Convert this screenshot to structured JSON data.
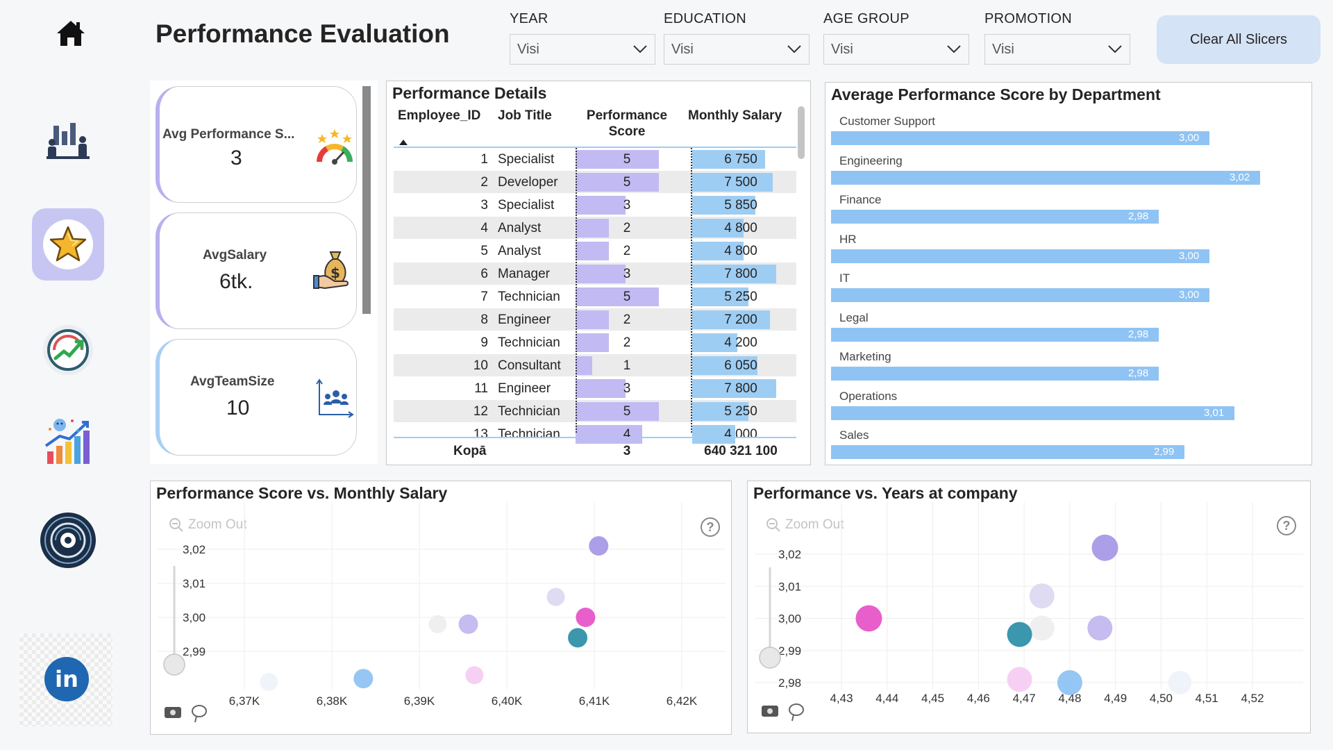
{
  "header": {
    "title": "Performance Evaluation",
    "clear_label": "Clear All Slicers"
  },
  "slicers": [
    {
      "label": "YEAR",
      "value": "Visi"
    },
    {
      "label": "EDUCATION",
      "value": "Visi"
    },
    {
      "label": "AGE GROUP",
      "value": "Visi"
    },
    {
      "label": "PROMOTION",
      "value": "Visi"
    }
  ],
  "sidebar": {
    "linkedin_text": "in",
    "icons": [
      "home-icon",
      "team-meeting-icon",
      "star-icon",
      "speedometer-icon",
      "growth-chart-icon",
      "gear-globe-icon",
      "linkedin-icon"
    ],
    "active_color": "#c7c6f2"
  },
  "kpis": [
    {
      "label": "Avg Performance S...",
      "value": "3",
      "icon": "rating-gauge-icon"
    },
    {
      "label": "AvgSalary",
      "value": "6tk.",
      "icon": "money-bag-icon"
    },
    {
      "label": "AvgTeamSize",
      "value": "10",
      "icon": "team-growth-icon"
    }
  ],
  "details": {
    "title": "Performance Details",
    "columns": {
      "id": "Employee_ID",
      "job": "Job Title",
      "score": "Performance Score",
      "salary": "Monthly Salary"
    },
    "rows": [
      {
        "id": "1",
        "job": "Specialist",
        "score": "5",
        "salary": "6 750",
        "score_n": 5,
        "salary_n": 6750
      },
      {
        "id": "2",
        "job": "Developer",
        "score": "5",
        "salary": "7 500",
        "score_n": 5,
        "salary_n": 7500
      },
      {
        "id": "3",
        "job": "Specialist",
        "score": "3",
        "salary": "5 850",
        "score_n": 3,
        "salary_n": 5850
      },
      {
        "id": "4",
        "job": "Analyst",
        "score": "2",
        "salary": "4 800",
        "score_n": 2,
        "salary_n": 4800
      },
      {
        "id": "5",
        "job": "Analyst",
        "score": "2",
        "salary": "4 800",
        "score_n": 2,
        "salary_n": 4800
      },
      {
        "id": "6",
        "job": "Manager",
        "score": "3",
        "salary": "7 800",
        "score_n": 3,
        "salary_n": 7800
      },
      {
        "id": "7",
        "job": "Technician",
        "score": "5",
        "salary": "5 250",
        "score_n": 5,
        "salary_n": 5250
      },
      {
        "id": "8",
        "job": "Engineer",
        "score": "2",
        "salary": "7 200",
        "score_n": 2,
        "salary_n": 7200
      },
      {
        "id": "9",
        "job": "Technician",
        "score": "2",
        "salary": "4 200",
        "score_n": 2,
        "salary_n": 4200
      },
      {
        "id": "10",
        "job": "Consultant",
        "score": "1",
        "salary": "6 050",
        "score_n": 1,
        "salary_n": 6050
      },
      {
        "id": "11",
        "job": "Engineer",
        "score": "3",
        "salary": "7 800",
        "score_n": 3,
        "salary_n": 7800
      },
      {
        "id": "12",
        "job": "Technician",
        "score": "5",
        "salary": "5 250",
        "score_n": 5,
        "salary_n": 5250
      },
      {
        "id": "13",
        "job": "Technician",
        "score": "4",
        "salary": "4 000",
        "score_n": 4,
        "salary_n": 4000
      }
    ],
    "total_label": "Kopā",
    "total_score": "3",
    "total_salary": "640 321 100",
    "score_max": 5,
    "salary_max": 8000
  },
  "chart_data": [
    {
      "type": "bar",
      "title": "Average Performance Score by Department",
      "categories": [
        "Customer Support",
        "Engineering",
        "Finance",
        "HR",
        "IT",
        "Legal",
        "Marketing",
        "Operations",
        "Sales"
      ],
      "values": [
        3.0,
        3.02,
        2.98,
        3.0,
        3.0,
        2.98,
        2.98,
        3.01,
        2.99
      ],
      "value_labels": [
        "3,00",
        "3,02",
        "2,98",
        "3,00",
        "3,00",
        "2,98",
        "2,98",
        "3,01",
        "2,99"
      ],
      "orientation": "horizontal",
      "bar_color": "#8fc3f3"
    },
    {
      "type": "scatter",
      "title": "Performance Score vs. Monthly Salary",
      "zoom_label": "Zoom Out",
      "help_label": "?",
      "x_ticks": [
        6370,
        6380,
        6390,
        6400,
        6410,
        6420
      ],
      "x_tick_labels": [
        "6,37K",
        "6,38K",
        "6,39K",
        "6,40K",
        "6,41K",
        "6,42K"
      ],
      "y_ticks": [
        2.99,
        3.0,
        3.01,
        3.02
      ],
      "y_tick_labels": [
        "2,99",
        "3,00",
        "3,01",
        "3,02"
      ],
      "points": [
        {
          "x": 6372.8,
          "y": 2.981,
          "r": 13,
          "color": "#eef3fa"
        },
        {
          "x": 6396.3,
          "y": 2.983,
          "r": 13,
          "color": "#f6cdf3"
        },
        {
          "x": 6410.5,
          "y": 3.021,
          "r": 14,
          "color": "#a89ae6"
        },
        {
          "x": 6405.6,
          "y": 3.006,
          "r": 13,
          "color": "#ddd9f2"
        },
        {
          "x": 6409.0,
          "y": 3.0,
          "r": 14,
          "color": "#e756c9"
        },
        {
          "x": 6408.1,
          "y": 2.994,
          "r": 14,
          "color": "#2f91a9"
        },
        {
          "x": 6395.6,
          "y": 2.998,
          "r": 14,
          "color": "#c3b8ef"
        },
        {
          "x": 6392.1,
          "y": 2.998,
          "r": 13,
          "color": "#eeeeee"
        },
        {
          "x": 6383.6,
          "y": 2.982,
          "r": 14,
          "color": "#8fc3f3"
        }
      ]
    },
    {
      "type": "scatter",
      "title": "Performance vs. Years at company",
      "zoom_label": "Zoom Out",
      "help_label": "?",
      "x_ticks": [
        4.43,
        4.44,
        4.45,
        4.46,
        4.47,
        4.48,
        4.49,
        4.5,
        4.51,
        4.52
      ],
      "x_tick_labels": [
        "4,43",
        "4,44",
        "4,45",
        "4,46",
        "4,47",
        "4,48",
        "4,49",
        "4,50",
        "4,51",
        "4,52"
      ],
      "y_ticks": [
        2.98,
        2.99,
        3.0,
        3.01,
        3.02
      ],
      "y_tick_labels": [
        "2,98",
        "2,99",
        "3,00",
        "3,01",
        "3,02"
      ],
      "points": [
        {
          "x": 4.436,
          "y": 3.0,
          "r": 19,
          "color": "#e756c9"
        },
        {
          "x": 4.4877,
          "y": 3.022,
          "r": 19,
          "color": "#a89ae6"
        },
        {
          "x": 4.4739,
          "y": 3.007,
          "r": 18,
          "color": "#ddd9f2"
        },
        {
          "x": 4.4739,
          "y": 2.997,
          "r": 18,
          "color": "#eeeeee"
        },
        {
          "x": 4.469,
          "y": 2.995,
          "r": 18,
          "color": "#2f91a9"
        },
        {
          "x": 4.4866,
          "y": 2.997,
          "r": 18,
          "color": "#c3b8ef"
        },
        {
          "x": 4.469,
          "y": 2.981,
          "r": 18,
          "color": "#f6cdf3"
        },
        {
          "x": 4.48,
          "y": 2.98,
          "r": 18,
          "color": "#8fc3f3"
        },
        {
          "x": 4.5041,
          "y": 2.98,
          "r": 17,
          "color": "#eef3fa"
        }
      ]
    }
  ]
}
